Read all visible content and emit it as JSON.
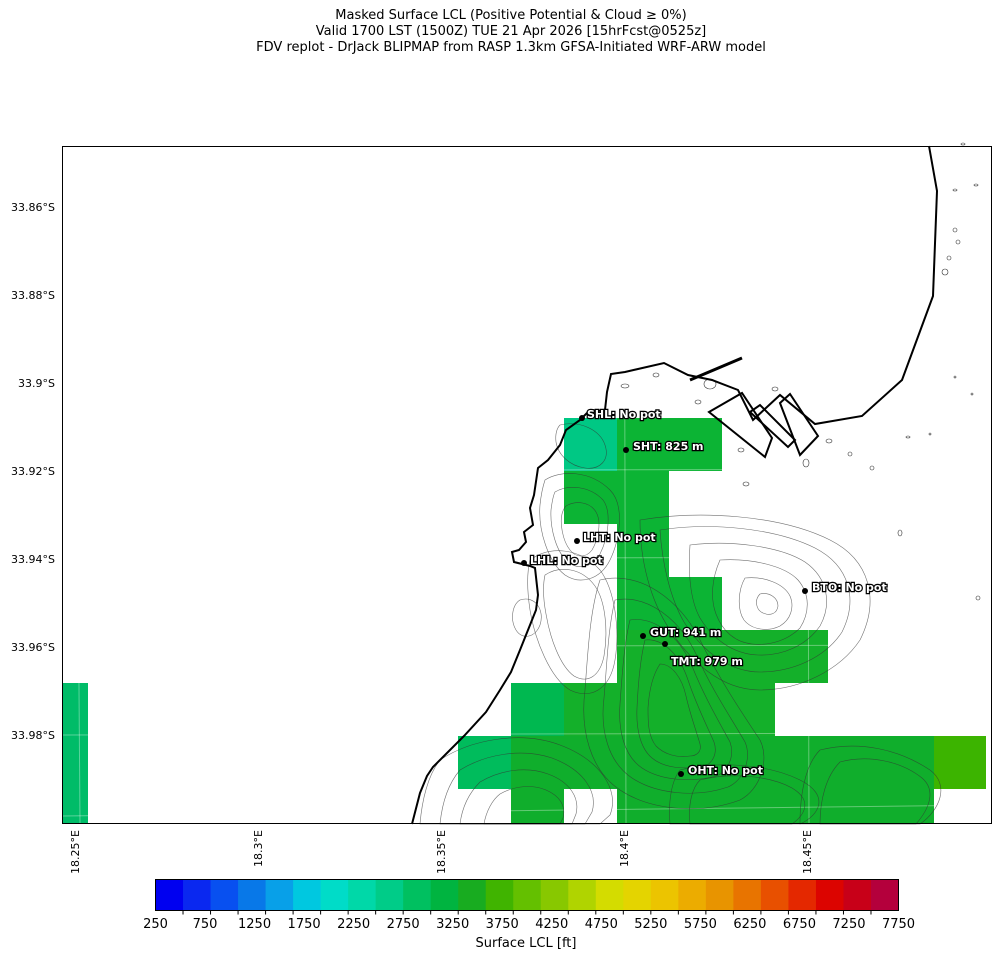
{
  "titles": {
    "line1": "Masked Surface LCL (Positive Potential & Cloud ≥ 0%)",
    "line2": "Valid 1700 LST (1500Z) TUE 21 Apr 2026 [15hrFcst@0525z]",
    "line3": "FDV replot - DrJack BLIPMAP from RASP 1.3km GFSA-Initiated WRF-ARW model"
  },
  "axes": {
    "lat_labels": [
      "33.86°S",
      "33.88°S",
      "33.9°S",
      "33.92°S",
      "33.94°S",
      "33.96°S",
      "33.98°S"
    ],
    "lon_labels": [
      "18.25°E",
      "18.3°E",
      "18.35°E",
      "18.4°E",
      "18.45°E"
    ]
  },
  "colorbar": {
    "label": "Surface LCL [ft]",
    "ticks": [
      "250",
      "750",
      "1250",
      "1750",
      "2250",
      "2750",
      "3250",
      "3750",
      "4250",
      "4750",
      "5250",
      "5750",
      "6250",
      "6750",
      "7250",
      "7750"
    ],
    "colors": [
      "#0000f0",
      "#0a28f0",
      "#0850f0",
      "#0878e8",
      "#08a0e8",
      "#00c8e0",
      "#00dcc8",
      "#00d8a8",
      "#00cc88",
      "#00c060",
      "#00b440",
      "#18ac20",
      "#40b400",
      "#64c000",
      "#88c800",
      "#b0d400",
      "#d4dc00",
      "#e4d400",
      "#ecc400",
      "#ecac00",
      "#e89400",
      "#e87400",
      "#e85000",
      "#e42800",
      "#dc0400",
      "#c80018",
      "#b4003c"
    ]
  },
  "sites": [
    {
      "id": "SHL",
      "label": "SHL: No pot"
    },
    {
      "id": "SHT",
      "label": "SHT: 825 m"
    },
    {
      "id": "LHT",
      "label": "LHT: No pot"
    },
    {
      "id": "LHL",
      "label": "LHL: No pot"
    },
    {
      "id": "BTO",
      "label": "BTO: No pot"
    },
    {
      "id": "GUT",
      "label": "GUT: 941 m"
    },
    {
      "id": "TMT",
      "label": "TMT: 979 m"
    },
    {
      "id": "OHT",
      "label": "OHT: No pot"
    }
  ]
}
